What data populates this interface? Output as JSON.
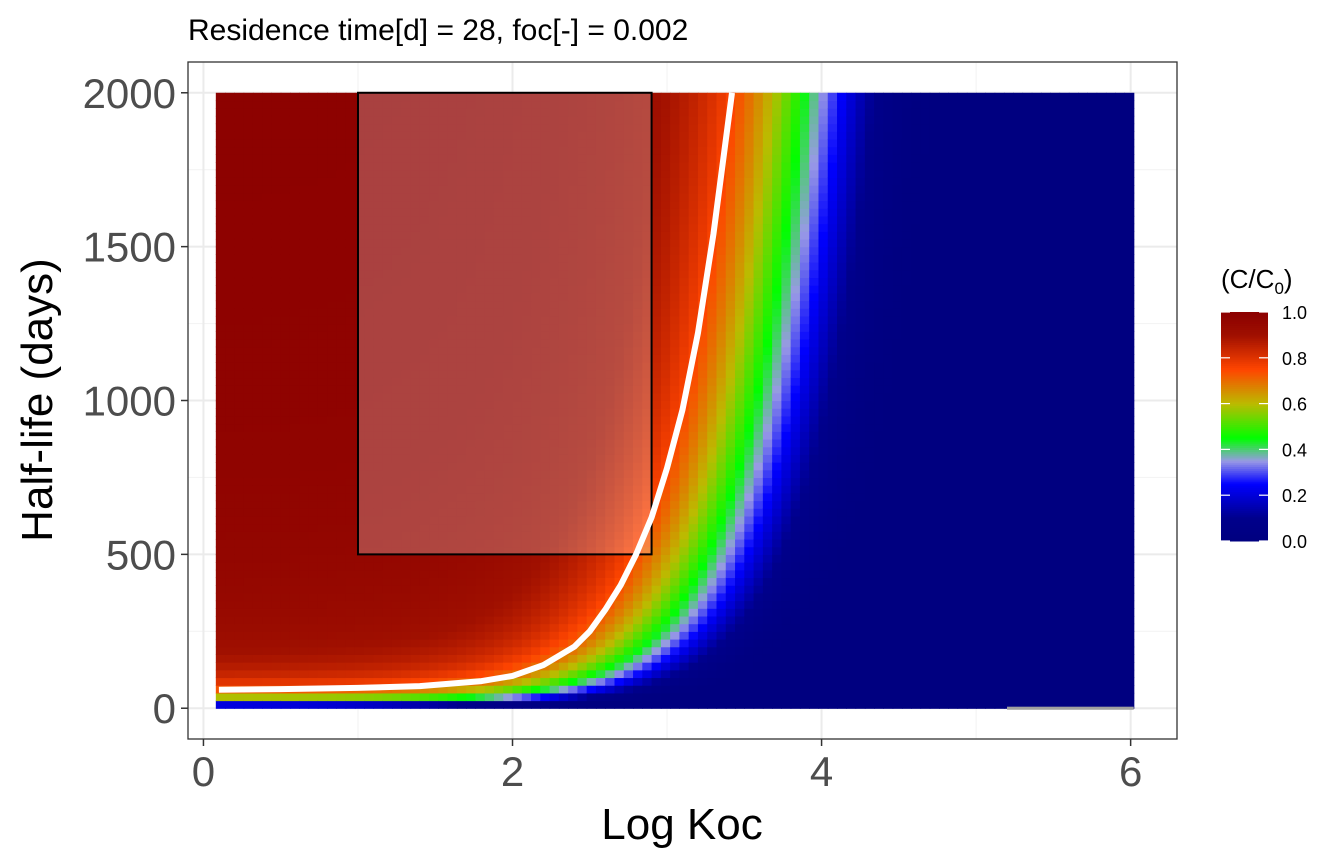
{
  "chart_data": {
    "type": "heatmap",
    "title": "Residence time[d] = 28, foc[-] = 0.002",
    "xlabel": "Log Koc",
    "ylabel": "Half-life (days)",
    "xlim": [
      -0.1,
      6.3
    ],
    "ylim": [
      -100,
      2100
    ],
    "x_ticks": [
      0,
      2,
      4,
      6
    ],
    "x_tick_labels": [
      "0",
      "2",
      "4",
      "6"
    ],
    "y_ticks": [
      0,
      500,
      1000,
      1500,
      2000
    ],
    "y_tick_labels": [
      "0",
      "500",
      "1000",
      "1500",
      "2000"
    ],
    "grid": true,
    "heatmap": {
      "x_range": [
        0.08,
        6.02
      ],
      "y_range": [
        0,
        2000
      ],
      "z_range": [
        0,
        1
      ],
      "missing_segment": {
        "x": [
          5.2,
          6.02
        ],
        "y": [
          -5,
          5
        ],
        "color": "#a0a0a0"
      }
    },
    "colorscale": [
      {
        "value": 0.0,
        "color": "#000080"
      },
      {
        "value": 0.1,
        "color": "#00008b"
      },
      {
        "value": 0.25,
        "color": "#0000ff"
      },
      {
        "value": 0.35,
        "color": "#9999e6"
      },
      {
        "value": 0.45,
        "color": "#00ff00"
      },
      {
        "value": 0.6,
        "color": "#bbbb00"
      },
      {
        "value": 0.75,
        "color": "#ff4500"
      },
      {
        "value": 0.9,
        "color": "#a01000"
      },
      {
        "value": 1.0,
        "color": "#8b0000"
      }
    ],
    "legend": {
      "title": "(C/C",
      "title_subscript": "0",
      "title_close": ")",
      "placement": "right",
      "ticks": [
        1.0,
        0.8,
        0.6,
        0.4,
        0.2,
        0.0
      ],
      "tick_labels": [
        "1.0",
        "0.8",
        "0.6",
        "0.4",
        "0.2",
        "0.0"
      ]
    },
    "annotations": {
      "rectangle": {
        "x": [
          1.0,
          2.9
        ],
        "y": [
          500,
          2000
        ],
        "stroke": "#000000",
        "fill": "#ffffff",
        "fill_opacity": 0.25
      },
      "white_curve": {
        "color": "#ffffff",
        "x": [
          0.1,
          0.5,
          1.0,
          1.4,
          1.8,
          2.0,
          2.2,
          2.4,
          2.5,
          2.6,
          2.7,
          2.8,
          2.9,
          3.0,
          3.1,
          3.2,
          3.3,
          3.42
        ],
        "y": [
          60,
          62,
          66,
          72,
          88,
          105,
          140,
          200,
          250,
          320,
          400,
          500,
          620,
          780,
          970,
          1220,
          1540,
          2000
        ]
      }
    }
  }
}
